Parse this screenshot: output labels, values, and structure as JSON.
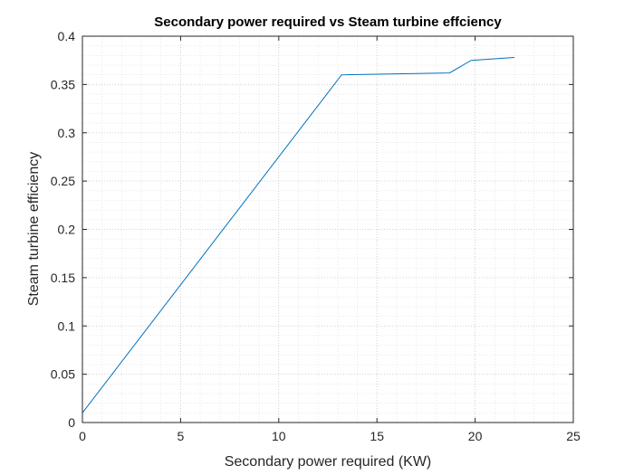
{
  "chart_data": {
    "type": "line",
    "title": "Secondary power required vs Steam turbine effciency",
    "xlabel": "Secondary power required (KW)",
    "ylabel": "Steam turbine efficiency",
    "xlim": [
      0,
      25
    ],
    "ylim": [
      0,
      0.4
    ],
    "xticks": [
      "0",
      "5",
      "10",
      "15",
      "20",
      "25"
    ],
    "yticks": [
      "0",
      "0.05",
      "0.1",
      "0.15",
      "0.2",
      "0.25",
      "0.3",
      "0.35",
      "0.4"
    ],
    "grid": true,
    "minor_grid": true,
    "series": [
      {
        "color": "#0072bd",
        "x": [
          0,
          13.2,
          18.7,
          19.8,
          22.0
        ],
        "y": [
          0.01,
          0.36,
          0.362,
          0.375,
          0.378
        ]
      }
    ]
  }
}
